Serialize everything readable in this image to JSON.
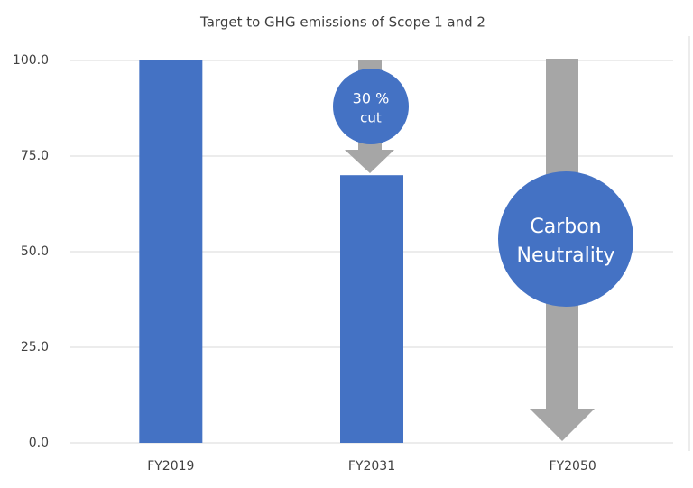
{
  "chart_data": {
    "type": "bar",
    "title": "Target to GHG emissions of Scope 1 and 2",
    "categories": [
      "FY2019",
      "FY2031",
      "FY2050"
    ],
    "values": [
      100,
      70,
      0
    ],
    "color": "#4472c4",
    "ylim": [
      0,
      100
    ],
    "yticks": [
      {
        "value": 0,
        "label": "0.0"
      },
      {
        "value": 25,
        "label": "25.0"
      },
      {
        "value": 50,
        "label": "50.0"
      },
      {
        "value": 75,
        "label": "75.0"
      },
      {
        "value": 100,
        "label": "100.0"
      }
    ],
    "grid": true,
    "annotations": [
      "30 %",
      "cut",
      "Carbon",
      "Neutrality"
    ]
  }
}
